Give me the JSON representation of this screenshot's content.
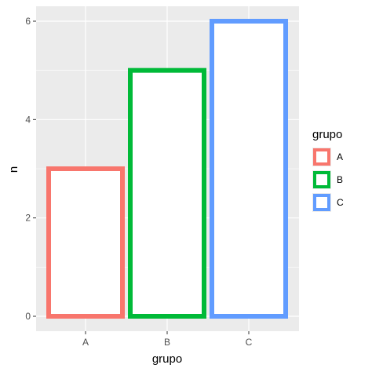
{
  "chart_data": {
    "type": "bar",
    "categories": [
      "A",
      "B",
      "C"
    ],
    "values": [
      3,
      5,
      6
    ],
    "xlabel": "grupo",
    "ylabel": "n",
    "ylim": [
      0,
      6.3
    ],
    "yticks": [
      0,
      2,
      4,
      6
    ],
    "grid": true,
    "bar_fill": "#ffffff",
    "series_colors": {
      "A": "#F8766D",
      "B": "#00BA38",
      "C": "#619CFF"
    },
    "panel_background": "#EBEBEB",
    "gridline_color": "#ffffff",
    "legend": {
      "title": "grupo",
      "entries": [
        "A",
        "B",
        "C"
      ],
      "position": "right"
    }
  }
}
